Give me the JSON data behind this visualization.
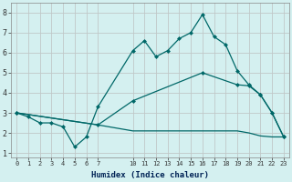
{
  "xlabel": "Humidex (Indice chaleur)",
  "bg_color": "#d4f0f0",
  "grid_color": "#c0c8c8",
  "line_color": "#006868",
  "xlim": [
    -0.5,
    23.5
  ],
  "ylim": [
    0.8,
    8.5
  ],
  "xticks": [
    0,
    1,
    2,
    3,
    4,
    5,
    6,
    7,
    10,
    11,
    12,
    13,
    14,
    15,
    16,
    17,
    18,
    19,
    20,
    21,
    22,
    23
  ],
  "yticks": [
    1,
    2,
    3,
    4,
    5,
    6,
    7,
    8
  ],
  "line1_x": [
    0,
    1,
    2,
    3,
    4,
    5,
    6,
    7,
    10,
    11,
    12,
    13,
    14,
    15,
    16,
    17,
    18,
    19,
    20,
    21,
    22,
    23
  ],
  "line1_y": [
    3.0,
    2.8,
    2.5,
    2.5,
    2.3,
    1.3,
    1.8,
    3.3,
    6.1,
    6.6,
    5.8,
    6.1,
    6.7,
    7.0,
    7.9,
    6.8,
    6.4,
    5.1,
    4.4,
    3.9,
    3.0,
    1.8
  ],
  "line2_x": [
    0,
    7,
    10,
    16,
    19,
    20,
    21,
    22,
    23
  ],
  "line2_y": [
    3.0,
    2.4,
    3.6,
    5.0,
    4.4,
    4.35,
    3.9,
    3.0,
    1.8
  ],
  "line3_x": [
    0,
    7,
    10,
    16,
    19,
    20,
    21,
    22,
    23
  ],
  "line3_y": [
    3.0,
    2.4,
    2.1,
    2.1,
    2.1,
    2.0,
    1.85,
    1.8,
    1.8
  ]
}
